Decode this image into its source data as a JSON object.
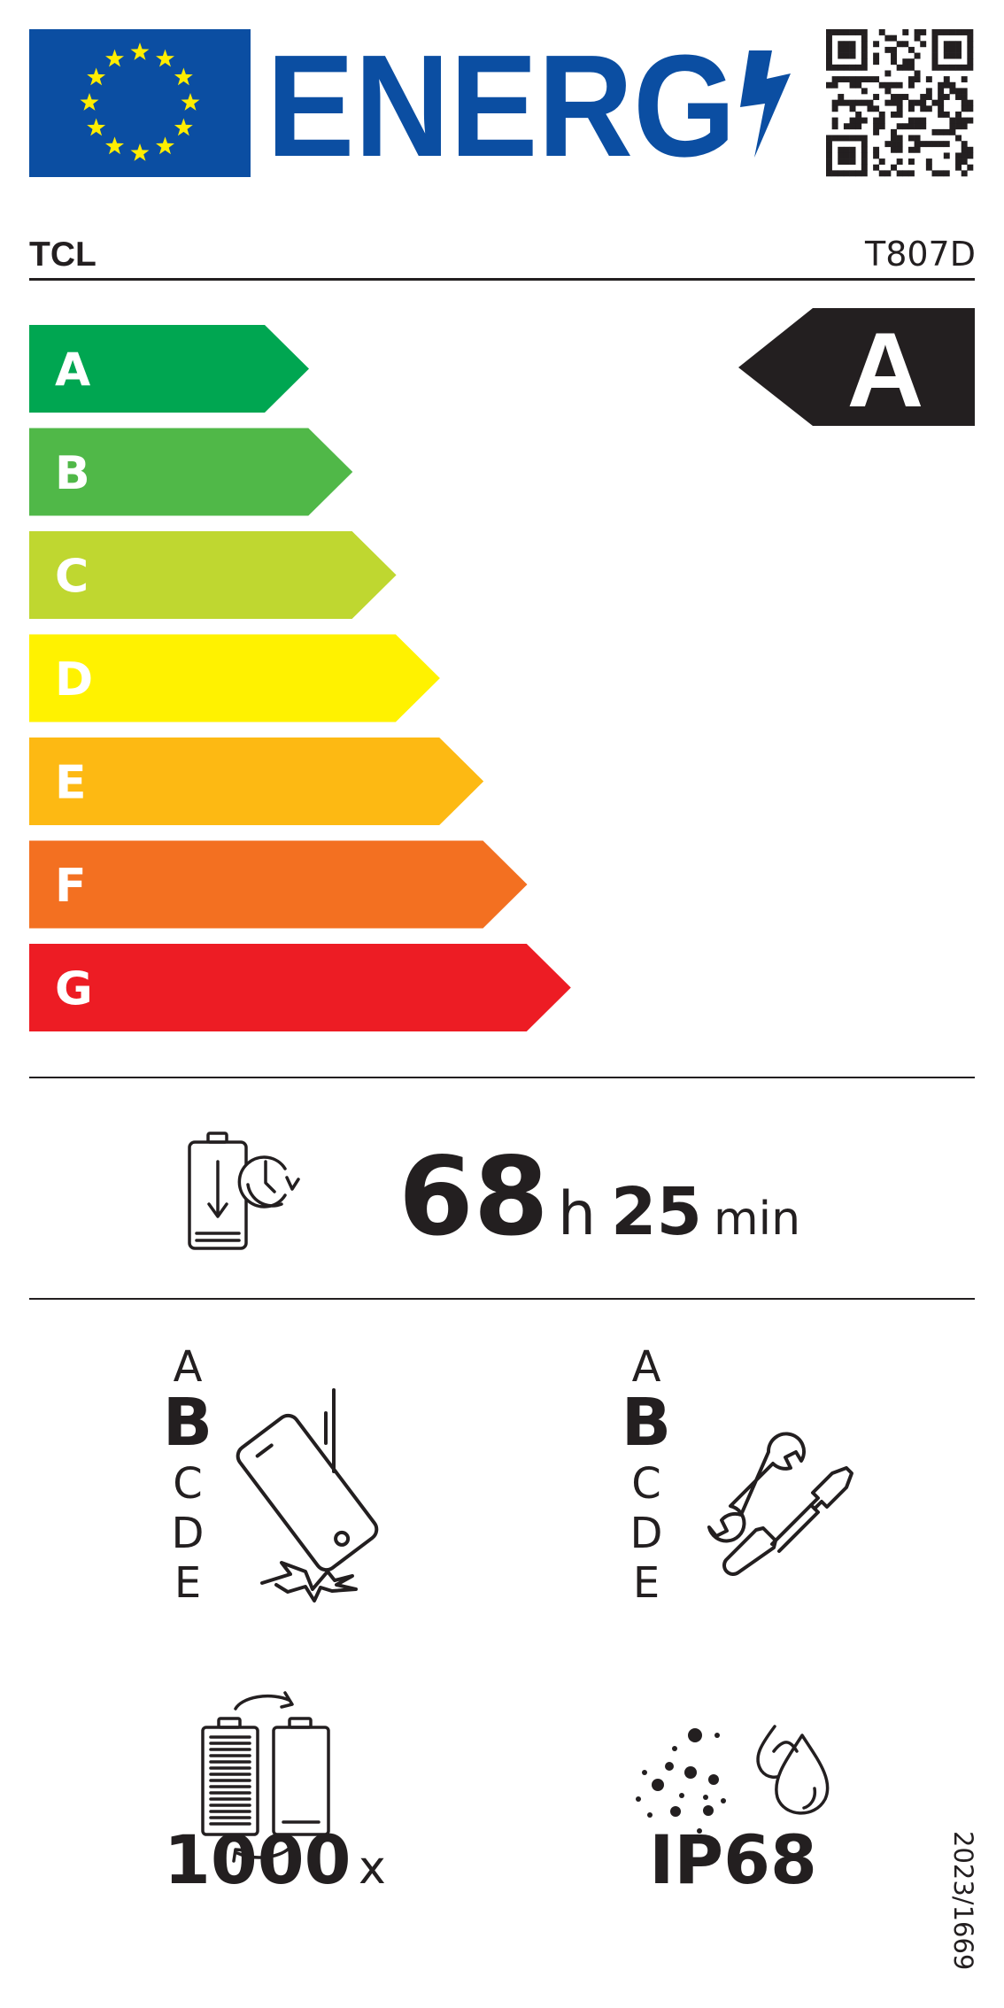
{
  "header": {
    "logo_text": "ENERG",
    "supplier": "TCL",
    "model": "T807D"
  },
  "colors": {
    "eu_blue": "#0b4ea2",
    "star_yellow": "#ffed00",
    "rating_black": "#231f20"
  },
  "energy_scale": {
    "classes": [
      {
        "letter": "A",
        "color": "#00a651"
      },
      {
        "letter": "B",
        "color": "#50b848"
      },
      {
        "letter": "C",
        "color": "#bfd730"
      },
      {
        "letter": "D",
        "color": "#fff200"
      },
      {
        "letter": "E",
        "color": "#fdb913"
      },
      {
        "letter": "F",
        "color": "#f37021"
      },
      {
        "letter": "G",
        "color": "#ed1c24"
      }
    ],
    "rating": "A"
  },
  "battery_endurance": {
    "icon": "battery-clock-icon",
    "hours": "68",
    "hours_unit": "h",
    "minutes": "25",
    "minutes_unit": "min"
  },
  "drop_resistance": {
    "icon": "phone-drop-icon",
    "scale": [
      "A",
      "B",
      "C",
      "D",
      "E"
    ],
    "selected": "B"
  },
  "repairability": {
    "icon": "wrench-screwdriver-icon",
    "scale": [
      "A",
      "B",
      "C",
      "D",
      "E"
    ],
    "selected": "B"
  },
  "battery_cycles": {
    "icon": "battery-cycle-icon",
    "value": "1000",
    "unit": "x"
  },
  "ingress_protection": {
    "icon": "dust-water-icon",
    "value": "IP68"
  },
  "regulation": "2023/1669"
}
